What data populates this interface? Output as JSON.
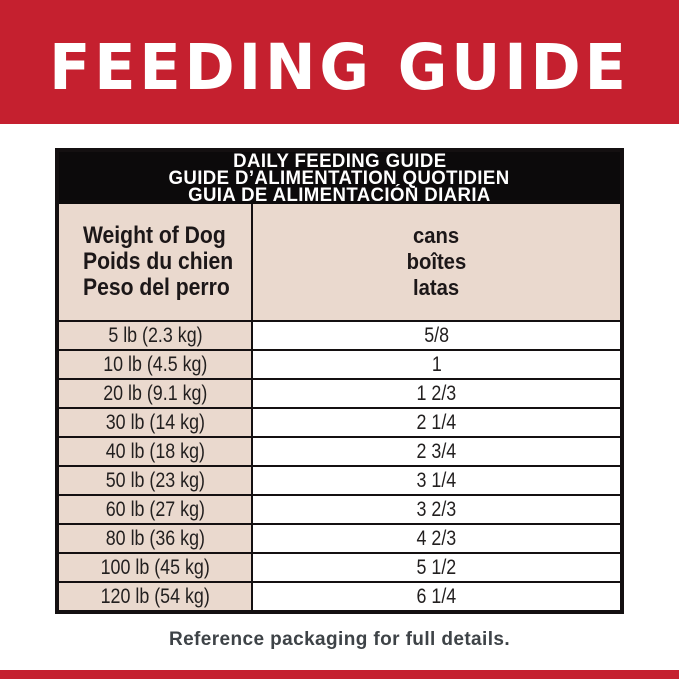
{
  "banner": {
    "title": "FEEDING GUIDE"
  },
  "table": {
    "title_lines": [
      "DAILY FEEDING GUIDE",
      "GUIDE D’ALIMENTATION QUOTIDIEN",
      "GUIA DE ALIMENTACIÓN DIARIA"
    ],
    "col1_header": [
      "Weight of Dog",
      "Poids du chien",
      "Peso del perro"
    ],
    "col2_header": [
      "cans",
      "boîtes",
      "latas"
    ],
    "rows": [
      {
        "weight": "5 lb (2.3 kg)",
        "cans": "5/8"
      },
      {
        "weight": "10 lb (4.5 kg)",
        "cans": "1"
      },
      {
        "weight": "20 lb (9.1 kg)",
        "cans": "1 2/3"
      },
      {
        "weight": "30 lb (14 kg)",
        "cans": "2 1/4"
      },
      {
        "weight": "40 lb (18 kg)",
        "cans": "2 3/4"
      },
      {
        "weight": "50 lb (23 kg)",
        "cans": "3 1/4"
      },
      {
        "weight": "60 lb (27 kg)",
        "cans": "3 2/3"
      },
      {
        "weight": "80 lb (36 kg)",
        "cans": "4 2/3"
      },
      {
        "weight": "100 lb (45 kg)",
        "cans": "5 1/2"
      },
      {
        "weight": "120 lb (54 kg)",
        "cans": "6 1/4"
      }
    ]
  },
  "footer": {
    "note": "Reference packaging for full details."
  },
  "colors": {
    "banner_red": "#c5202f",
    "band_black": "#0c0a0b",
    "cell_pink": "#ead9ce",
    "footer_text": "#3e4347"
  }
}
